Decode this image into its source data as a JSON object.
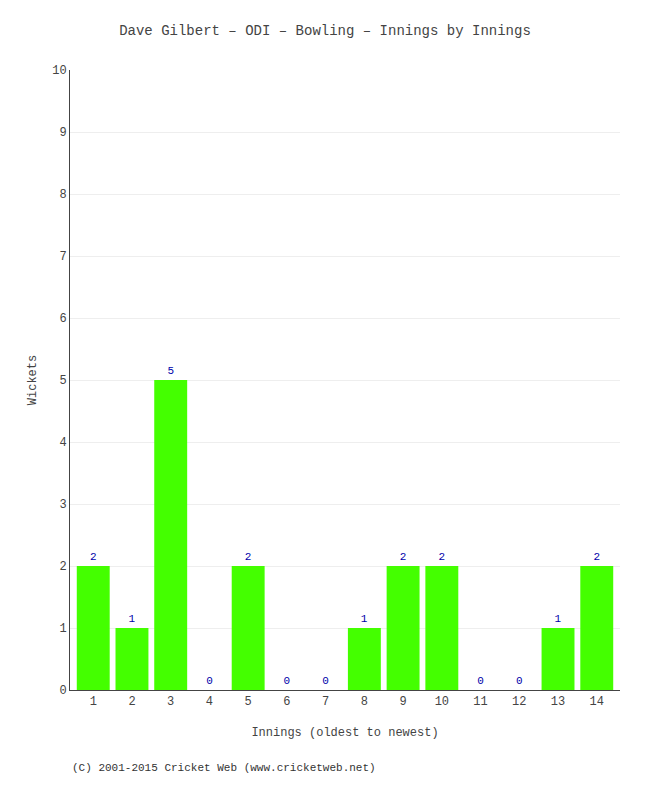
{
  "chart_data": {
    "type": "bar",
    "title": "Dave Gilbert – ODI – Bowling – Innings by Innings",
    "xlabel": "Innings (oldest to newest)",
    "ylabel": "Wickets",
    "categories": [
      1,
      2,
      3,
      4,
      5,
      6,
      7,
      8,
      9,
      10,
      11,
      12,
      13,
      14
    ],
    "values": [
      2,
      1,
      5,
      0,
      2,
      0,
      0,
      1,
      2,
      2,
      0,
      0,
      1,
      2
    ],
    "color": "#44ff00",
    "ylim": [
      0,
      10
    ],
    "yticks": [
      0,
      1,
      2,
      3,
      4,
      5,
      6,
      7,
      8,
      9,
      10
    ],
    "grid": true,
    "data_labels": true,
    "annotations": [
      "(C) 2001-2015 Cricket Web (www.cricketweb.net)"
    ]
  }
}
